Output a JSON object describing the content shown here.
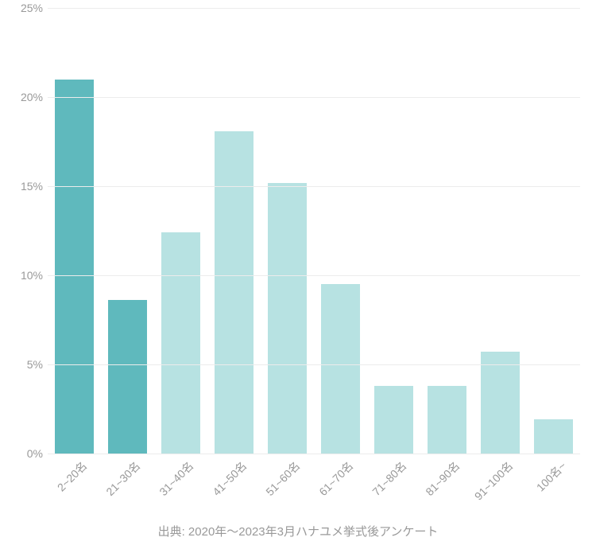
{
  "chart": {
    "type": "bar",
    "ylim": [
      0,
      25
    ],
    "yticks": [
      0,
      5,
      10,
      15,
      20,
      25
    ],
    "ytick_labels": [
      "0%",
      "5%",
      "10%",
      "15%",
      "20%",
      "25%"
    ],
    "categories": [
      "2~20名",
      "21~30名",
      "31~40名",
      "41~50名",
      "51~60名",
      "61~70名",
      "71~80名",
      "81~90名",
      "91~100名",
      "100名~"
    ],
    "values": [
      21.0,
      8.6,
      12.4,
      18.1,
      15.2,
      9.5,
      3.8,
      3.8,
      5.7,
      1.9
    ],
    "bar_colors": [
      "#5fb9bd",
      "#5fb9bd",
      "#b7e2e2",
      "#b7e2e2",
      "#b7e2e2",
      "#b7e2e2",
      "#b7e2e2",
      "#b7e2e2",
      "#b7e2e2",
      "#b7e2e2"
    ],
    "grid_color": "#ececec",
    "background_color": "#ffffff",
    "axis_label_color": "#999999",
    "axis_fontsize": 14,
    "bar_width_ratio": 0.74
  },
  "source_text": "出典: 2020年〜2023年3月ハナユメ挙式後アンケート"
}
